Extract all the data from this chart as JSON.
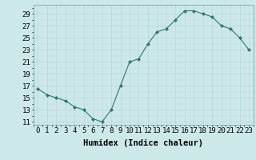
{
  "x": [
    0,
    1,
    2,
    3,
    4,
    5,
    6,
    7,
    8,
    9,
    10,
    11,
    12,
    13,
    14,
    15,
    16,
    17,
    18,
    19,
    20,
    21,
    22,
    23
  ],
  "y": [
    16.5,
    15.5,
    15.0,
    14.5,
    13.5,
    13.0,
    11.5,
    11.0,
    13.0,
    17.0,
    21.0,
    21.5,
    24.0,
    26.0,
    26.5,
    28.0,
    29.5,
    29.5,
    29.0,
    28.5,
    27.0,
    26.5,
    25.0,
    23.0
  ],
  "xlabel": "Humidex (Indice chaleur)",
  "xlim": [
    -0.5,
    23.5
  ],
  "ylim": [
    10.5,
    30.5
  ],
  "yticks": [
    11,
    13,
    15,
    17,
    19,
    21,
    23,
    25,
    27,
    29
  ],
  "xtick_labels": [
    "0",
    "1",
    "2",
    "3",
    "4",
    "5",
    "6",
    "7",
    "8",
    "9",
    "10",
    "11",
    "12",
    "13",
    "14",
    "15",
    "16",
    "17",
    "18",
    "19",
    "20",
    "21",
    "22",
    "23"
  ],
  "line_color": "#2d7a6a",
  "marker_color": "#2d7a6a",
  "bg_color": "#cce8e8",
  "grid_major_color": "#b8d8d8",
  "grid_minor_color": "#c8e0e0",
  "label_fontsize": 7.5,
  "tick_fontsize": 6.5
}
